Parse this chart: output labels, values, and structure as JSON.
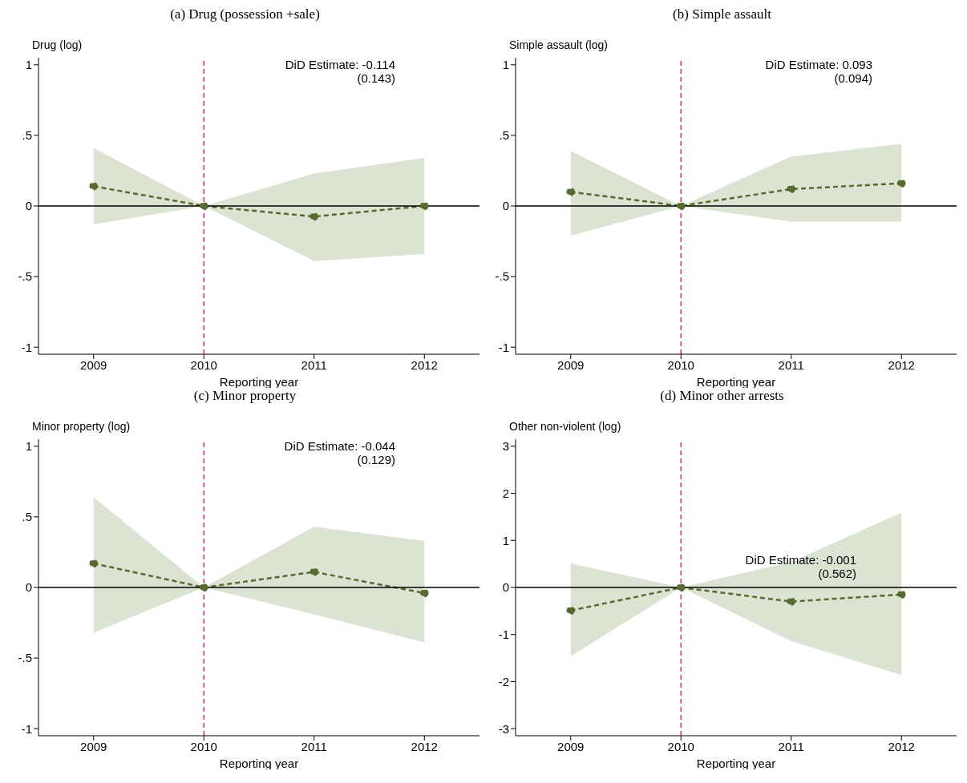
{
  "chart_data": [
    {
      "type": "line",
      "title": "(a) Drug (possession +sale)",
      "ylabel": "Drug (log)",
      "xlabel": "Reporting year",
      "x": [
        2009,
        2010,
        2011,
        2012
      ],
      "xlim": [
        2008.5,
        2012.5
      ],
      "xticks": [
        2009,
        2010,
        2011,
        2012
      ],
      "ylim": [
        -1.05,
        1.05
      ],
      "yticks": [
        {
          "value": -1,
          "label": "-1"
        },
        {
          "value": -0.5,
          "label": "-.5"
        },
        0,
        {
          "value": 0.5,
          "label": ".5"
        },
        1
      ],
      "grid": false,
      "legend": false,
      "marker": "circle",
      "line_style": "dashed",
      "annotations": [
        "DiD Estimate: -0.114",
        "(0.143)"
      ],
      "ref_lines": [
        {
          "axis": "y",
          "value": 0,
          "color": "#000000",
          "line_style": "solid"
        },
        {
          "axis": "x",
          "value": 2010,
          "color": "#dc143c",
          "line_style": "dashed"
        }
      ],
      "series": [
        {
          "color": "#556b2f",
          "values": [
            0.14,
            0,
            -0.075,
            0
          ],
          "lower": [
            -0.13,
            0,
            -0.39,
            -0.34
          ],
          "upper": [
            0.41,
            0,
            0.23,
            0.34
          ]
        }
      ]
    },
    {
      "type": "line",
      "title": "(b) Simple assault",
      "ylabel": "Simple assault (log)",
      "xlabel": "Reporting year",
      "x": [
        2009,
        2010,
        2011,
        2012
      ],
      "xlim": [
        2008.5,
        2012.5
      ],
      "xticks": [
        2009,
        2010,
        2011,
        2012
      ],
      "ylim": [
        -1.05,
        1.05
      ],
      "yticks": [
        {
          "value": -1,
          "label": "-1"
        },
        {
          "value": -0.5,
          "label": "-.5"
        },
        0,
        {
          "value": 0.5,
          "label": ".5"
        },
        1
      ],
      "grid": false,
      "legend": false,
      "marker": "circle",
      "line_style": "dashed",
      "annotations": [
        "DiD Estimate: 0.093",
        "(0.094)"
      ],
      "ref_lines": [
        {
          "axis": "y",
          "value": 0,
          "color": "#000000",
          "line_style": "solid"
        },
        {
          "axis": "x",
          "value": 2010,
          "color": "#dc143c",
          "line_style": "dashed"
        }
      ],
      "series": [
        {
          "color": "#556b2f",
          "values": [
            0.1,
            0,
            0.12,
            0.16
          ],
          "lower": [
            -0.21,
            0,
            -0.11,
            -0.11
          ],
          "upper": [
            0.39,
            0,
            0.35,
            0.44
          ]
        }
      ]
    },
    {
      "type": "line",
      "title": "(c) Minor property",
      "ylabel": "Minor property (log)",
      "xlabel": "Reporting year",
      "x": [
        2009,
        2010,
        2011,
        2012
      ],
      "xlim": [
        2008.5,
        2012.5
      ],
      "xticks": [
        2009,
        2010,
        2011,
        2012
      ],
      "ylim": [
        -1.05,
        1.05
      ],
      "yticks": [
        {
          "value": -1,
          "label": "-1"
        },
        {
          "value": -0.5,
          "label": "-.5"
        },
        0,
        {
          "value": 0.5,
          "label": ".5"
        },
        1
      ],
      "grid": false,
      "legend": false,
      "marker": "circle",
      "line_style": "dashed",
      "annotations": [
        "DiD Estimate: -0.044",
        "(0.129)"
      ],
      "ref_lines": [
        {
          "axis": "y",
          "value": 0,
          "color": "#000000",
          "line_style": "solid"
        },
        {
          "axis": "x",
          "value": 2010,
          "color": "#dc143c",
          "line_style": "dashed"
        }
      ],
      "series": [
        {
          "color": "#556b2f",
          "values": [
            0.17,
            0,
            0.11,
            -0.04
          ],
          "lower": [
            -0.32,
            0,
            -0.19,
            -0.39
          ],
          "upper": [
            0.64,
            0,
            0.43,
            0.33
          ]
        }
      ]
    },
    {
      "type": "line",
      "title": "(d) Minor other arrests",
      "ylabel": "Other non-violent (log)",
      "xlabel": "Reporting year",
      "x": [
        2009,
        2010,
        2011,
        2012
      ],
      "xlim": [
        2008.5,
        2012.5
      ],
      "xticks": [
        2009,
        2010,
        2011,
        2012
      ],
      "ylim": [
        -3.15,
        3.15
      ],
      "yticks": [
        -3,
        -2,
        -1,
        0,
        1,
        2,
        3
      ],
      "grid": false,
      "legend": false,
      "marker": "circle",
      "line_style": "dashed",
      "annotations": [
        "DiD Estimate: -0.001",
        "(0.562)"
      ],
      "ref_lines": [
        {
          "axis": "y",
          "value": 0,
          "color": "#000000",
          "line_style": "solid"
        },
        {
          "axis": "x",
          "value": 2010,
          "color": "#dc143c",
          "line_style": "dashed"
        }
      ],
      "series": [
        {
          "color": "#556b2f",
          "values": [
            -0.49,
            0,
            -0.3,
            -0.15
          ],
          "lower": [
            -1.46,
            0,
            -1.14,
            -1.86
          ],
          "upper": [
            0.51,
            0,
            0.54,
            1.59
          ]
        }
      ]
    }
  ]
}
